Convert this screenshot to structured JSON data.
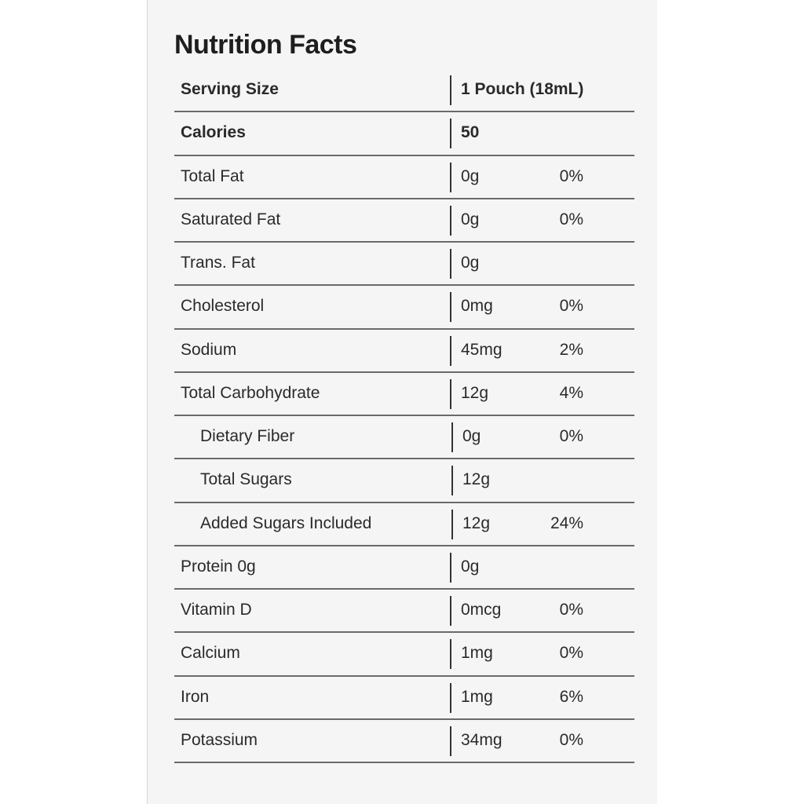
{
  "title": "Nutrition Facts",
  "rows": [
    {
      "label": "Serving Size",
      "value": "1 Pouch (18mL)",
      "percent": "",
      "bold": true,
      "indent": false
    },
    {
      "label": "Calories",
      "value": "50",
      "percent": "",
      "bold": true,
      "indent": false
    },
    {
      "label": "Total Fat",
      "value": "0g",
      "percent": "0%",
      "bold": false,
      "indent": false
    },
    {
      "label": "Saturated Fat",
      "value": "0g",
      "percent": "0%",
      "bold": false,
      "indent": false
    },
    {
      "label": "Trans. Fat",
      "value": "0g",
      "percent": "",
      "bold": false,
      "indent": false
    },
    {
      "label": "Cholesterol",
      "value": "0mg",
      "percent": "0%",
      "bold": false,
      "indent": false
    },
    {
      "label": "Sodium",
      "value": "45mg",
      "percent": "2%",
      "bold": false,
      "indent": false
    },
    {
      "label": "Total Carbohydrate",
      "value": "12g",
      "percent": "4%",
      "bold": false,
      "indent": false
    },
    {
      "label": "Dietary Fiber",
      "value": "0g",
      "percent": "0%",
      "bold": false,
      "indent": true
    },
    {
      "label": "Total Sugars",
      "value": "12g",
      "percent": "",
      "bold": false,
      "indent": true
    },
    {
      "label": "Added Sugars Included",
      "value": "12g",
      "percent": "24%",
      "bold": false,
      "indent": true
    },
    {
      "label": "Protein 0g",
      "value": "0g",
      "percent": "",
      "bold": false,
      "indent": false
    },
    {
      "label": "Vitamin D",
      "value": "0mcg",
      "percent": "0%",
      "bold": false,
      "indent": false
    },
    {
      "label": "Calcium",
      "value": "1mg",
      "percent": "0%",
      "bold": false,
      "indent": false
    },
    {
      "label": "Iron",
      "value": "1mg",
      "percent": "6%",
      "bold": false,
      "indent": false
    },
    {
      "label": "Potassium",
      "value": "34mg",
      "percent": "0%",
      "bold": false,
      "indent": false
    }
  ]
}
